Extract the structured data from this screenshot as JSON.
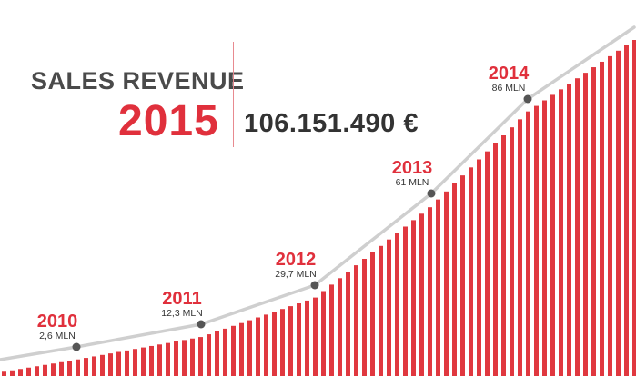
{
  "header": {
    "label": "SALES REVENUE",
    "year": "2015",
    "value": "106.151.490 €"
  },
  "colors": {
    "accent": "#e0303c",
    "bars": "#e0383f",
    "line": "#cfcfcf",
    "dot": "#555555",
    "text": "#4a4a4a"
  },
  "chart_data": {
    "type": "bar",
    "title": "SALES REVENUE",
    "annotation_total": "106.151.490 €",
    "unit": "MLN",
    "points": [
      {
        "year": "2010",
        "value": 2.6,
        "label": "2,6 MLN"
      },
      {
        "year": "2011",
        "value": 12.3,
        "label": "12,3 MLN"
      },
      {
        "year": "2012",
        "value": 29.7,
        "label": "29,7 MLN"
      },
      {
        "year": "2013",
        "value": 61,
        "label": "61 MLN"
      },
      {
        "year": "2014",
        "value": 86,
        "label": "86 MLN"
      },
      {
        "year": "2015",
        "value": 106.15
      }
    ],
    "grid": false,
    "legend": "none"
  }
}
